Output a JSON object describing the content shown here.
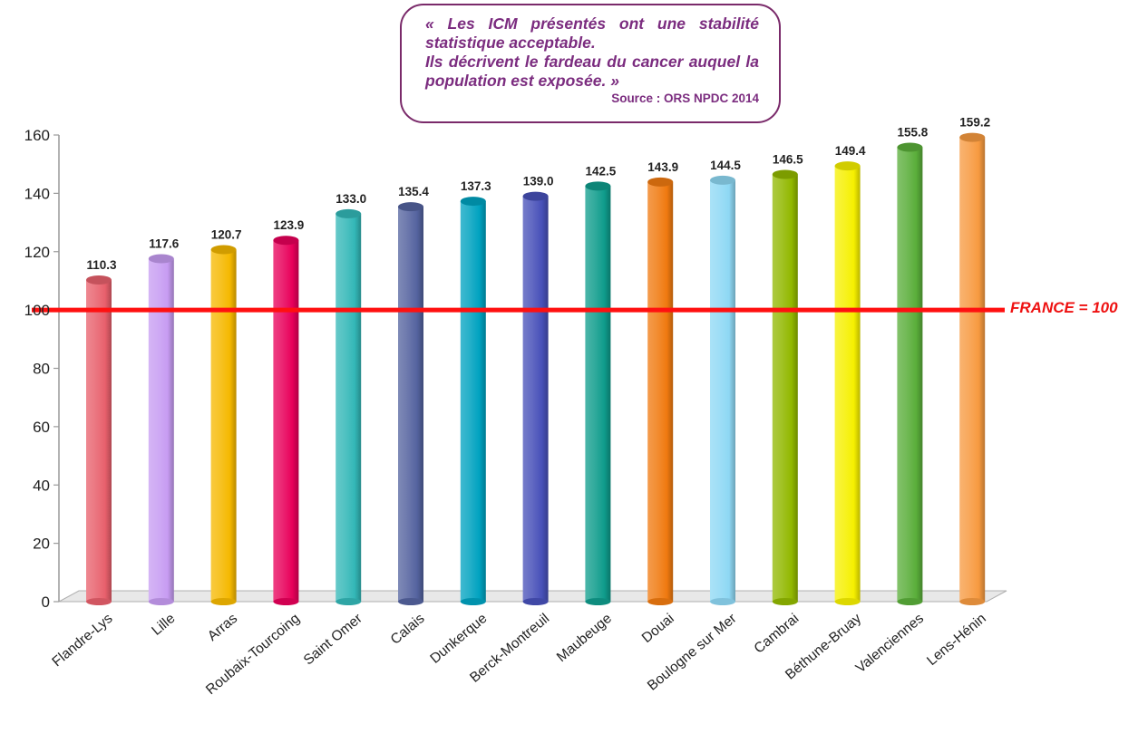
{
  "callout": {
    "lines": [
      "« Les ICM présentés ont une stabilité statistique acceptable.",
      "Ils décrivent le fardeau du cancer auquel la population est exposée. »"
    ],
    "source": "Source : ORS NPDC 2014"
  },
  "reference_line": {
    "label": "FRANCE = 100",
    "value": 100,
    "color": "#ff1010"
  },
  "chart_data": {
    "type": "bar",
    "title": "",
    "xlabel": "",
    "ylabel": "",
    "ylim": [
      0,
      160
    ],
    "yticks": [
      0,
      20,
      40,
      60,
      80,
      100,
      120,
      140,
      160
    ],
    "categories": [
      "Flandre-Lys",
      "Lille",
      "Arras",
      "Roubaix-Tourcoing",
      "Saint Omer",
      "Calais",
      "Dunkerque",
      "Berck-Montreuil",
      "Maubeuge",
      "Douai",
      "Boulogne sur Mer",
      "Cambrai",
      "Béthune-Bruay",
      "Valenciennes",
      "Lens-Hénin"
    ],
    "values": [
      110.3,
      117.6,
      120.7,
      123.9,
      133.0,
      135.4,
      137.3,
      139.0,
      142.5,
      143.9,
      144.5,
      146.5,
      149.4,
      155.8,
      159.2
    ],
    "value_labels": [
      "110.3",
      "117.6",
      "120.7",
      "123.9",
      "133.0",
      "135.4",
      "137.3",
      "139.0",
      "142.5",
      "143.9",
      "144.5",
      "146.5",
      "149.4",
      "155.8",
      "159.2"
    ],
    "colors": [
      "#e8606c",
      "#c79cf2",
      "#f5b800",
      "#e8005a",
      "#33b7b7",
      "#54639f",
      "#00a2c0",
      "#4750b8",
      "#0f9c8c",
      "#f07a10",
      "#8ed8f4",
      "#92b800",
      "#f6f000",
      "#5aae3a",
      "#f79a40"
    ],
    "grid": false,
    "legend": "none"
  }
}
